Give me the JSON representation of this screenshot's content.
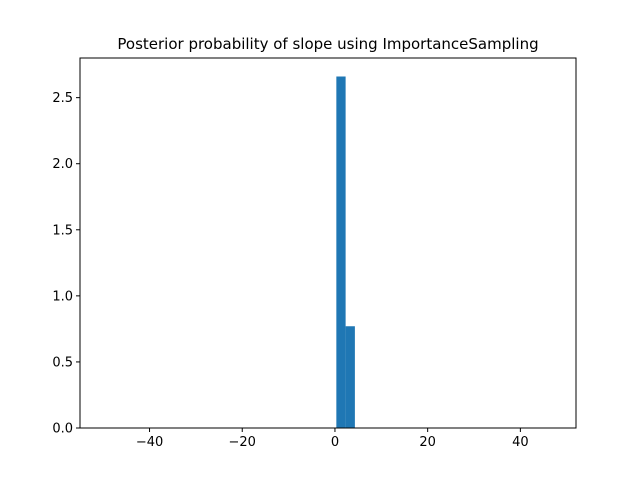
{
  "chart_data": {
    "type": "bar",
    "title": "Posterior probability of slope using ImportanceSampling",
    "xlabel": "",
    "ylabel": "",
    "xlim": [
      -55,
      52
    ],
    "ylim": [
      0,
      2.8
    ],
    "x_ticks": [
      {
        "value": -40,
        "label": "−40"
      },
      {
        "value": -20,
        "label": "−20"
      },
      {
        "value": 0,
        "label": "0"
      },
      {
        "value": 20,
        "label": "20"
      },
      {
        "value": 40,
        "label": "40"
      }
    ],
    "y_ticks": [
      {
        "value": 0.0,
        "label": "0.0"
      },
      {
        "value": 0.5,
        "label": "0.5"
      },
      {
        "value": 1.0,
        "label": "1.0"
      },
      {
        "value": 1.5,
        "label": "1.5"
      },
      {
        "value": 2.0,
        "label": "2.0"
      },
      {
        "value": 2.5,
        "label": "2.5"
      }
    ],
    "bins": [
      {
        "x0": 0.3,
        "x1": 2.3,
        "value": 2.66
      },
      {
        "x0": 2.3,
        "x1": 4.3,
        "value": 0.77
      }
    ],
    "color": "#1f77b4",
    "grid": false,
    "legend": "none"
  }
}
